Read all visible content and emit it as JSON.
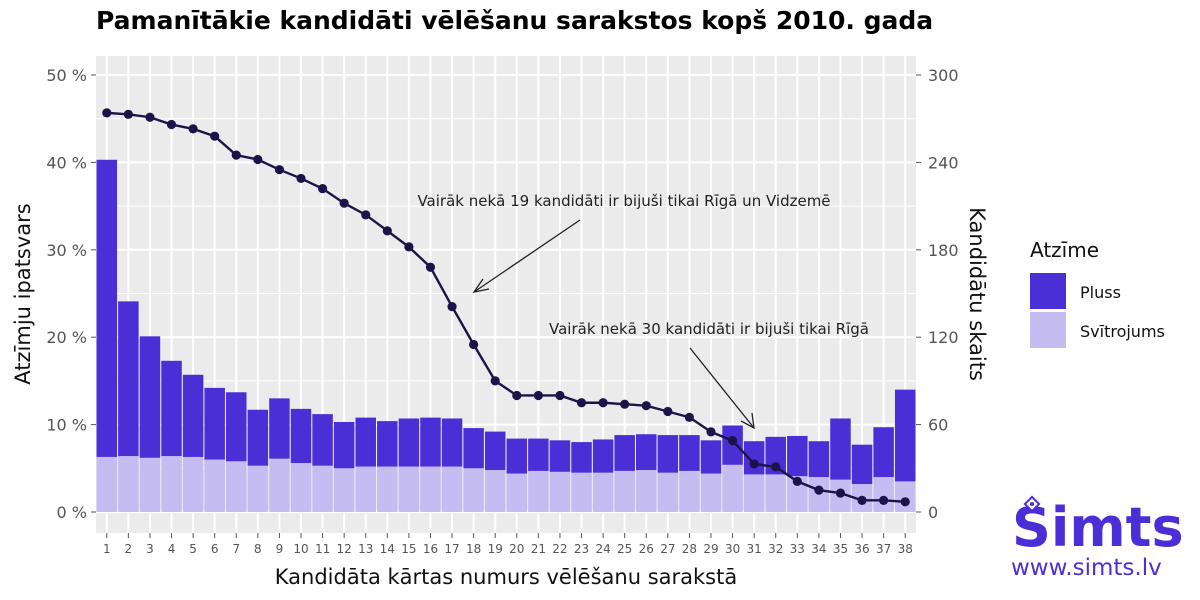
{
  "chart_data": {
    "type": "bar",
    "title": "Pamanītākie kandidāti vēlēšanu sarakstos kopš 2010. gada",
    "xlabel": "Kandidāta kārtas numurs vēlēšanu sarakstā",
    "ylabel_left": "Atzīmju ipatsvars",
    "ylabel_right": "Kandidātu skaits",
    "left_axis": {
      "ylim": [
        0,
        50
      ],
      "ticks": [
        "0 %",
        "10 %",
        "20 %",
        "30 %",
        "40 %",
        "50 %"
      ]
    },
    "right_axis": {
      "ylim": [
        0,
        300
      ],
      "ticks": [
        "0",
        "60",
        "120",
        "180",
        "240",
        "300"
      ]
    },
    "grid": true,
    "categories": [
      "1",
      "2",
      "3",
      "4",
      "5",
      "6",
      "7",
      "8",
      "9",
      "10",
      "11",
      "12",
      "13",
      "14",
      "15",
      "16",
      "17",
      "18",
      "19",
      "20",
      "21",
      "22",
      "23",
      "24",
      "25",
      "26",
      "27",
      "28",
      "29",
      "30",
      "31",
      "32",
      "33",
      "34",
      "35",
      "36",
      "37",
      "38"
    ],
    "series": [
      {
        "name": "Pluss",
        "kind": "stacked-bar-top",
        "axis": "left",
        "color": "#4b2fd6",
        "values": [
          34.0,
          17.7,
          13.9,
          10.9,
          9.4,
          8.2,
          7.9,
          6.4,
          6.9,
          6.2,
          5.9,
          5.3,
          5.6,
          5.2,
          5.5,
          5.6,
          5.5,
          4.6,
          4.4,
          4.0,
          3.7,
          3.6,
          3.5,
          3.8,
          4.1,
          4.1,
          4.3,
          4.1,
          3.8,
          4.5,
          3.8,
          4.3,
          4.6,
          4.1,
          7.0,
          4.5,
          5.7,
          10.5
        ]
      },
      {
        "name": "Svītrojums",
        "kind": "stacked-bar-bottom",
        "axis": "left",
        "color": "#c5bcf2",
        "values": [
          6.3,
          6.4,
          6.2,
          6.4,
          6.3,
          6.0,
          5.8,
          5.3,
          6.1,
          5.6,
          5.3,
          5.0,
          5.2,
          5.2,
          5.2,
          5.2,
          5.2,
          5.0,
          4.8,
          4.4,
          4.7,
          4.6,
          4.5,
          4.5,
          4.7,
          4.8,
          4.5,
          4.7,
          4.4,
          5.4,
          4.3,
          4.3,
          4.1,
          4.0,
          3.7,
          3.2,
          4.0,
          3.5
        ]
      },
      {
        "name": "",
        "kind": "line",
        "axis": "right",
        "color": "#1c1348",
        "values": [
          274,
          273,
          271,
          266,
          263,
          258,
          245,
          242,
          235,
          229,
          222,
          212,
          204,
          193,
          182,
          168,
          141,
          115,
          90,
          80,
          80,
          80,
          75,
          75,
          74,
          73,
          69,
          65,
          55,
          49,
          33,
          31,
          21,
          15,
          13,
          8,
          8,
          7
        ]
      }
    ],
    "legend": {
      "title": "Atzīme",
      "position": "right",
      "entries": [
        "Pluss",
        "Svītrojums"
      ]
    },
    "annotations": [
      {
        "text": "Vairāk nekā 19 kandidāti ir bijuši tikai Rīgā un Vidzemē",
        "points_to_category": "17"
      },
      {
        "text": "Vairāk nekā 30 kandidāti ir bijuši tikai Rīgā",
        "points_to_category": "31"
      }
    ]
  },
  "brand": {
    "name": "Simts",
    "url": "www.simts.lv",
    "color": "#4b2fd6",
    "logo_icon": "diamond-dot-icon"
  }
}
